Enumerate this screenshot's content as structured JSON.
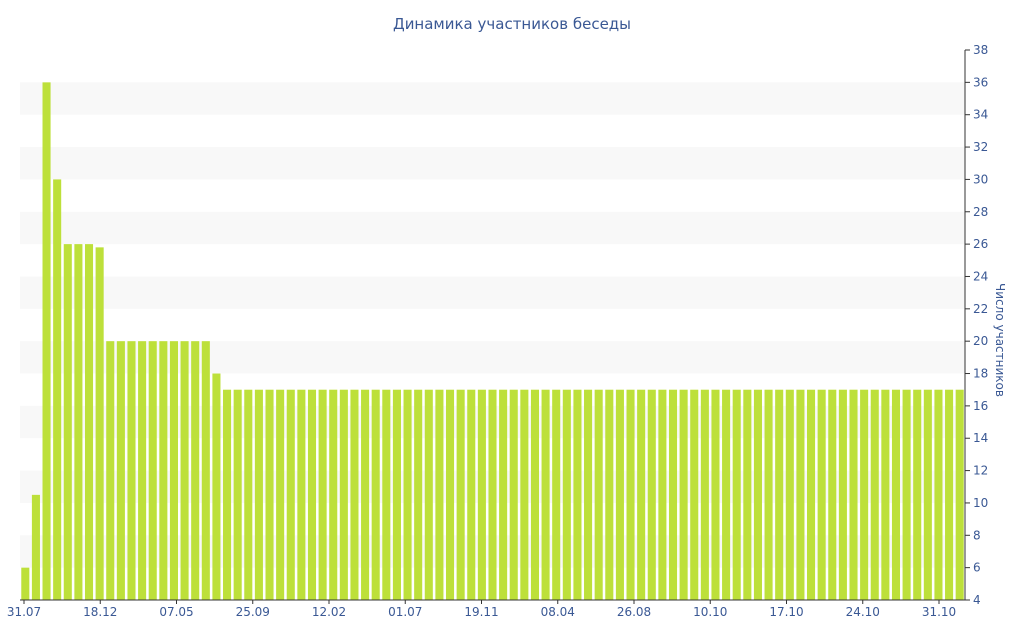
{
  "chart_data": {
    "type": "bar",
    "title": "Динамика участников беседы",
    "xlabel": "",
    "ylabel": "Число участников",
    "ylim": [
      4,
      38
    ],
    "ytick_step": 2,
    "y_axis_position": "right",
    "grid": "alternating horizontal bands",
    "legend": "none",
    "bar_color": "#bde03a",
    "text_color": "#3a5894",
    "x_tick_labels": [
      "31.07",
      "18.12",
      "07.05",
      "25.09",
      "12.02",
      "01.07",
      "19.11",
      "08.04",
      "26.08",
      "10.10",
      "17.10",
      "24.10",
      "31.10"
    ],
    "values": [
      6,
      10.5,
      36,
      30,
      26,
      26,
      26,
      25.8,
      20,
      20,
      20,
      20,
      20,
      20,
      20,
      20,
      20,
      20,
      18,
      17,
      17,
      17,
      17,
      17,
      17,
      17,
      17,
      17,
      17,
      17,
      17,
      17,
      17,
      17,
      17,
      17,
      17,
      17,
      17,
      17,
      17,
      17,
      17,
      17,
      17,
      17,
      17,
      17,
      17,
      17,
      17,
      17,
      17,
      17,
      17,
      17,
      17,
      17,
      17,
      17,
      17,
      17,
      17,
      17,
      17,
      17,
      17,
      17,
      17,
      17,
      17,
      17,
      17,
      17,
      17,
      17,
      17,
      17,
      17,
      17,
      17,
      17,
      17,
      17,
      17,
      17,
      17,
      17,
      17
    ]
  }
}
